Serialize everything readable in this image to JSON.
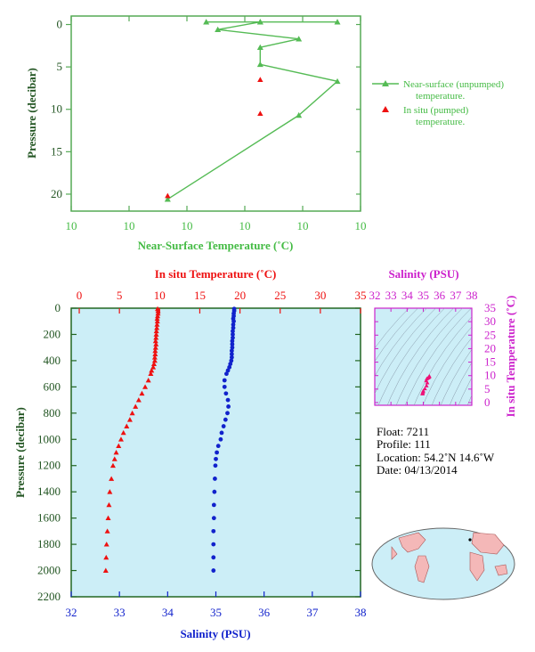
{
  "chart_data": [
    {
      "type": "line",
      "panel": "near-surface",
      "xlabel": "Near-Surface Temperature (˚C)",
      "ylabel": "Pressure (decibar)",
      "xtick_labels": [
        "10",
        "10",
        "10",
        "10",
        "10",
        "10"
      ],
      "yticks": [
        0,
        5,
        10,
        15,
        20
      ],
      "ylim": [
        22,
        -1
      ],
      "colors": {
        "axis": "#55aa55",
        "unpumped": "#55bb55",
        "pumped": "#ee1111"
      },
      "legend_position": "right",
      "series": [
        {
          "name": "Near-surface (unpumped) temperature.",
          "marker": "triangle",
          "points": [
            {
              "x": 10.0025,
              "y": 20.6
            },
            {
              "x": 10.0059,
              "y": 10.7
            },
            {
              "x": 10.0069,
              "y": 6.7
            },
            {
              "x": 10.0049,
              "y": 4.7
            },
            {
              "x": 10.0049,
              "y": 2.7
            },
            {
              "x": 10.0059,
              "y": 1.7
            },
            {
              "x": 10.0038,
              "y": 0.6
            },
            {
              "x": 10.0049,
              "y": -0.3
            },
            {
              "x": 10.0069,
              "y": -0.3
            },
            {
              "x": 10.0049,
              "y": -0.3
            },
            {
              "x": 10.0035,
              "y": -0.3
            }
          ]
        },
        {
          "name": "In situ (pumped) temperature.",
          "marker": "triangle",
          "points": [
            {
              "x": 10.0049,
              "y": 6.5
            },
            {
              "x": 10.0049,
              "y": 10.5
            },
            {
              "x": 10.0025,
              "y": 20.2
            }
          ]
        }
      ]
    },
    {
      "type": "scatter",
      "panel": "profile",
      "title_top": "In situ Temperature (˚C)",
      "xlabel": "Salinity (PSU)",
      "ylabel": "Pressure (decibar)",
      "temperature_axis": {
        "range": [
          -1,
          35
        ],
        "ticks": [
          0,
          5,
          10,
          15,
          20,
          25,
          30,
          35
        ]
      },
      "salinity_axis": {
        "range": [
          32,
          38
        ],
        "ticks": [
          32,
          33,
          34,
          35,
          36,
          37,
          38
        ]
      },
      "pressure_axis": {
        "range": [
          0,
          2200
        ],
        "ticks": [
          0,
          200,
          400,
          600,
          800,
          1000,
          1200,
          1400,
          1600,
          1800,
          2000,
          2200
        ]
      },
      "colors": {
        "background": "#cceef7",
        "temperature": "#ee1111",
        "salinity": "#1122cc",
        "frame": "#226622"
      },
      "pressure": [
        5,
        20,
        40,
        60,
        80,
        100,
        125,
        150,
        175,
        200,
        225,
        250,
        275,
        300,
        325,
        350,
        375,
        400,
        425,
        450,
        475,
        500,
        550,
        600,
        650,
        700,
        750,
        800,
        850,
        900,
        950,
        1000,
        1050,
        1100,
        1150,
        1200,
        1300,
        1400,
        1500,
        1600,
        1700,
        1800,
        1900,
        2000
      ],
      "temperature": [
        9.75,
        9.8,
        9.8,
        9.75,
        9.7,
        9.72,
        9.68,
        9.65,
        9.6,
        9.58,
        9.55,
        9.5,
        9.55,
        9.5,
        9.45,
        9.45,
        9.4,
        9.4,
        9.3,
        9.2,
        9.0,
        8.9,
        8.6,
        8.2,
        7.8,
        7.4,
        7.0,
        6.6,
        6.3,
        5.9,
        5.5,
        5.2,
        4.9,
        4.6,
        4.4,
        4.2,
        4.0,
        3.8,
        3.7,
        3.6,
        3.5,
        3.4,
        3.35,
        3.3
      ],
      "salinity": [
        35.38,
        35.38,
        35.37,
        35.37,
        35.36,
        35.37,
        35.36,
        35.36,
        35.35,
        35.35,
        35.35,
        35.34,
        35.34,
        35.34,
        35.33,
        35.33,
        35.33,
        35.32,
        35.3,
        35.28,
        35.25,
        35.22,
        35.18,
        35.18,
        35.21,
        35.25,
        35.26,
        35.24,
        35.2,
        35.16,
        35.12,
        35.1,
        35.05,
        35.02,
        35.0,
        34.99,
        34.98,
        34.97,
        34.96,
        34.96,
        34.95,
        34.95,
        34.95,
        34.95
      ]
    },
    {
      "type": "scatter",
      "panel": "ts-diagram",
      "title_top": "Salinity (PSU)",
      "ylabel": "In situ Temperature (˚C)",
      "salinity_axis": {
        "range": [
          32,
          38
        ],
        "ticks": [
          32,
          33,
          34,
          35,
          36,
          37,
          38
        ]
      },
      "temperature_axis": {
        "range": [
          -1,
          35
        ],
        "ticks": [
          0,
          5,
          10,
          15,
          20,
          25,
          30,
          35
        ]
      },
      "colors": {
        "background": "#cceef7",
        "points": "#ee1177",
        "contours": "#8899aa",
        "axis": "#cc22cc"
      },
      "points": [
        {
          "s": 35.38,
          "t": 9.8
        },
        {
          "s": 35.36,
          "t": 9.6
        },
        {
          "s": 35.34,
          "t": 9.45
        },
        {
          "s": 35.3,
          "t": 9.2
        },
        {
          "s": 35.22,
          "t": 8.9
        },
        {
          "s": 35.18,
          "t": 8.2
        },
        {
          "s": 35.25,
          "t": 7.4
        },
        {
          "s": 35.2,
          "t": 6.3
        },
        {
          "s": 35.1,
          "t": 5.2
        },
        {
          "s": 35.0,
          "t": 4.4
        },
        {
          "s": 34.98,
          "t": 4.0
        },
        {
          "s": 34.96,
          "t": 3.6
        },
        {
          "s": 34.95,
          "t": 3.4
        },
        {
          "s": 34.95,
          "t": 3.3
        }
      ]
    }
  ],
  "float_info": {
    "float": "Float:  7211",
    "profile": "Profile:  111",
    "location": "Location:  54.2˚N  14.6˚W",
    "date": "Date:  04/13/2014"
  }
}
